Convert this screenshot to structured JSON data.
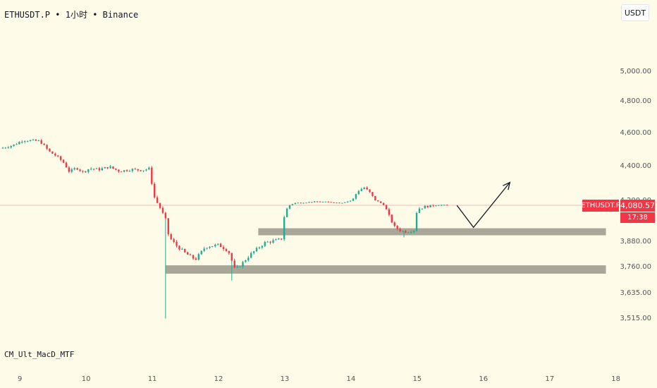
{
  "header": {
    "symbol": "ETHUSDT.P",
    "interval": "1小时",
    "exchange": "Binance",
    "separator": "•"
  },
  "currency_button": {
    "label": "USDT"
  },
  "price_label": {
    "symbol": "ETHUSDT.P",
    "price": "4,080.57",
    "countdown": "17:38"
  },
  "indicator": {
    "label": "CM_Ult_MacD_MTF"
  },
  "colors": {
    "background": "#fefbe9",
    "up": "#22ab94",
    "down": "#f23645",
    "zone": "#a5a293",
    "projection": "#131722"
  },
  "chart_data": {
    "type": "candlestick",
    "y_ticks": [
      {
        "label": "5,000.00",
        "value": 5000
      },
      {
        "label": "4,800.00",
        "value": 4800
      },
      {
        "label": "4,600.00",
        "value": 4600
      },
      {
        "label": "4,400.00",
        "value": 4400
      },
      {
        "label": "4,200.00",
        "value": 4200
      },
      {
        "label": "3,880.00",
        "value": 3880
      },
      {
        "label": "3,760.00",
        "value": 3760
      },
      {
        "label": "3,635.00",
        "value": 3635
      },
      {
        "label": "3,515.00",
        "value": 3515
      }
    ],
    "x_ticks": [
      {
        "label": "9",
        "day": 9
      },
      {
        "label": "10",
        "day": 10
      },
      {
        "label": "11",
        "day": 11
      },
      {
        "label": "12",
        "day": 12
      },
      {
        "label": "13",
        "day": 13
      },
      {
        "label": "14",
        "day": 14
      },
      {
        "label": "15",
        "day": 15
      },
      {
        "label": "16",
        "day": 16
      },
      {
        "label": "17",
        "day": 17
      },
      {
        "label": "18",
        "day": 18
      }
    ],
    "x_range": [
      8.7,
      18.6
    ],
    "last_price": 4080.57,
    "zones": [
      {
        "from_day": 12.6,
        "to_day": 17.85,
        "low": 3910,
        "high": 3950
      },
      {
        "from_day": 11.2,
        "to_day": 17.85,
        "low": 3723,
        "high": 3763
      }
    ],
    "projection": [
      {
        "day": 15.6,
        "price": 4080
      },
      {
        "day": 15.85,
        "price": 3955
      },
      {
        "day": 16.4,
        "price": 4300
      }
    ],
    "close_path": [
      [
        8.7,
        4500
      ],
      [
        8.9,
        4520
      ],
      [
        9.05,
        4550
      ],
      [
        9.3,
        4545
      ],
      [
        9.45,
        4480
      ],
      [
        9.55,
        4455
      ],
      [
        9.65,
        4420
      ],
      [
        9.75,
        4360
      ],
      [
        9.85,
        4385
      ],
      [
        9.95,
        4360
      ],
      [
        10.05,
        4380
      ],
      [
        10.2,
        4375
      ],
      [
        10.35,
        4390
      ],
      [
        10.5,
        4365
      ],
      [
        10.7,
        4375
      ],
      [
        10.85,
        4370
      ],
      [
        10.95,
        4380
      ],
      [
        11.0,
        4280
      ],
      [
        11.1,
        4080
      ],
      [
        11.2,
        4000
      ],
      [
        11.25,
        3900
      ],
      [
        11.35,
        3860
      ],
      [
        11.5,
        3820
      ],
      [
        11.65,
        3790
      ],
      [
        11.8,
        3850
      ],
      [
        12.0,
        3860
      ],
      [
        12.15,
        3830
      ],
      [
        12.25,
        3740
      ],
      [
        12.35,
        3770
      ],
      [
        12.5,
        3820
      ],
      [
        12.7,
        3870
      ],
      [
        12.85,
        3880
      ],
      [
        12.95,
        3890
      ],
      [
        13.0,
        4040
      ],
      [
        13.15,
        4130
      ],
      [
        13.3,
        4140
      ],
      [
        13.5,
        4160
      ],
      [
        13.7,
        4145
      ],
      [
        13.85,
        4130
      ],
      [
        14.0,
        4180
      ],
      [
        14.1,
        4250
      ],
      [
        14.2,
        4270
      ],
      [
        14.3,
        4235
      ],
      [
        14.45,
        4130
      ],
      [
        14.55,
        4040
      ],
      [
        14.65,
        3960
      ],
      [
        14.75,
        3935
      ],
      [
        14.85,
        3930
      ],
      [
        14.95,
        3940
      ],
      [
        15.0,
        4060
      ],
      [
        15.2,
        4080
      ],
      [
        15.35,
        4090
      ],
      [
        15.45,
        4080.57
      ]
    ],
    "wicks": [
      {
        "day": 11.2,
        "low": 3510
      },
      {
        "day": 12.2,
        "low": 3690
      },
      {
        "day": 14.8,
        "low": 3898
      }
    ]
  }
}
